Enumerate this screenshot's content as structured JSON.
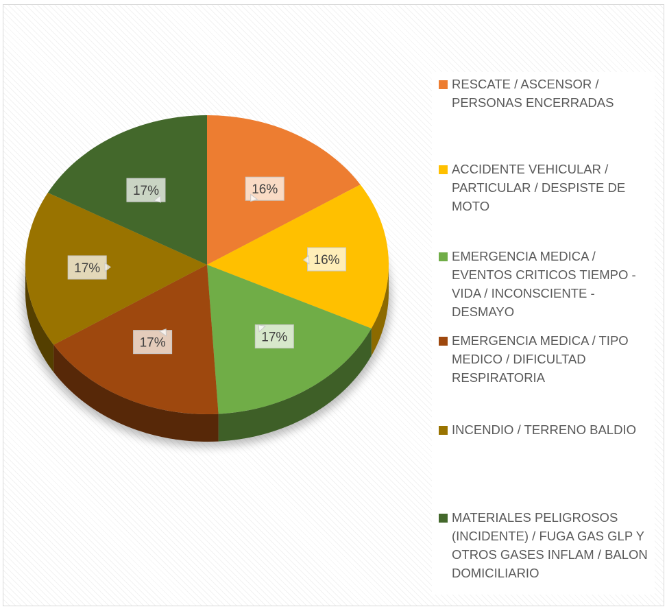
{
  "chart_data": {
    "type": "pie",
    "categories": [
      "RESCATE / ASCENSOR / PERSONAS ENCERRADAS",
      "ACCIDENTE VEHICULAR / PARTICULAR / DESPISTE DE MOTO",
      "EMERGENCIA MEDICA / EVENTOS CRITICOS TIEMPO - VIDA / INCONSCIENTE - DESMAYO",
      "EMERGENCIA MEDICA / TIPO MEDICO / DIFICULTAD RESPIRATORIA",
      "INCENDIO / TERRENO BALDIO",
      "MATERIALES PELIGROSOS (INCIDENTE) / FUGA GAS GLP Y OTROS GASES INFLAM / BALON DOMICILIARIO"
    ],
    "values": [
      16,
      16,
      17,
      17,
      17,
      17
    ],
    "data_labels": [
      "16%",
      "16%",
      "17%",
      "17%",
      "17%",
      "17%"
    ],
    "colors": [
      "#ED7D31",
      "#FFC000",
      "#70AD47",
      "#9E480E",
      "#997300",
      "#43682B"
    ],
    "style": "3d",
    "legend_position": "right"
  }
}
